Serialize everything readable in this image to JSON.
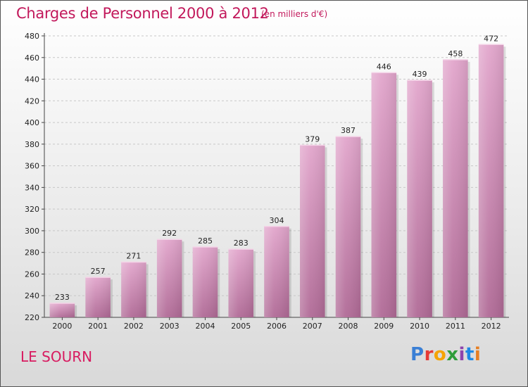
{
  "chart_data": {
    "type": "bar",
    "title": "Charges de Personnel 2000 à 2012",
    "subtitle": "(en milliers d'€)",
    "categories": [
      "2000",
      "2001",
      "2002",
      "2003",
      "2004",
      "2005",
      "2006",
      "2007",
      "2008",
      "2009",
      "2010",
      "2011",
      "2012"
    ],
    "values": [
      233,
      257,
      271,
      292,
      285,
      283,
      304,
      379,
      387,
      446,
      439,
      458,
      472
    ],
    "ylim": [
      220,
      480
    ],
    "yticks": [
      220,
      240,
      260,
      280,
      300,
      320,
      340,
      360,
      380,
      400,
      420,
      440,
      460,
      480
    ],
    "xlabel": "",
    "ylabel": "",
    "bar_color_top": "#e2a6cc",
    "bar_color_bottom": "#b06a96",
    "grid": true
  },
  "footer": {
    "commune": "LE SOURN",
    "logo_letters": [
      "P",
      "r",
      "o",
      "x",
      "i",
      "t",
      "i"
    ]
  },
  "colors": {
    "title": "#c2185b",
    "commune": "#d81b60"
  }
}
